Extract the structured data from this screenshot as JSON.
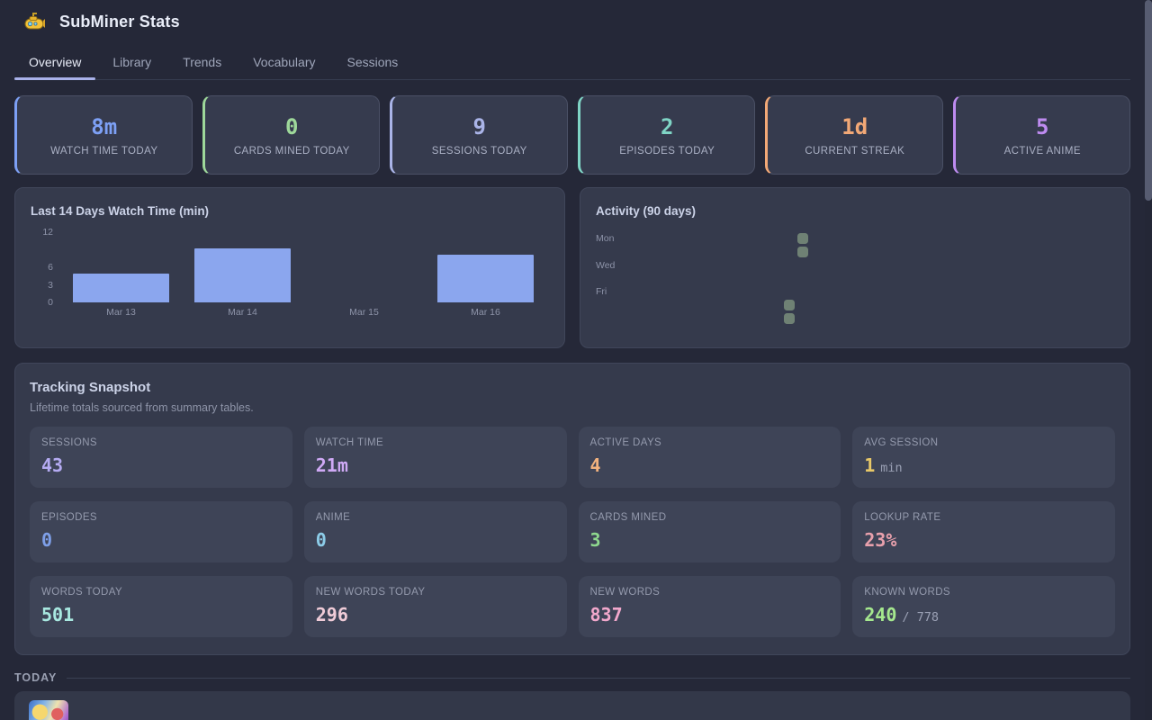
{
  "header": {
    "title": "SubMiner Stats",
    "icon": "yellow-submarine"
  },
  "tabs": [
    {
      "label": "Overview",
      "active": true
    },
    {
      "label": "Library",
      "active": false
    },
    {
      "label": "Trends",
      "active": false
    },
    {
      "label": "Vocabulary",
      "active": false
    },
    {
      "label": "Sessions",
      "active": false
    }
  ],
  "stat_cards": [
    {
      "value": "8m",
      "label": "WATCH TIME TODAY",
      "color": "#7da0f5"
    },
    {
      "value": "0",
      "label": "CARDS MINED TODAY",
      "color": "#9ed89a"
    },
    {
      "value": "9",
      "label": "SESSIONS TODAY",
      "color": "#aab4e8"
    },
    {
      "value": "2",
      "label": "EPISODES TODAY",
      "color": "#7fd4c5"
    },
    {
      "value": "1d",
      "label": "CURRENT STREAK",
      "color": "#f2a876"
    },
    {
      "value": "5",
      "label": "ACTIVE ANIME",
      "color": "#be8bf0"
    }
  ],
  "chart_data": [
    {
      "type": "bar",
      "title": "Last 14 Days Watch Time (min)",
      "categories": [
        "Mar 13",
        "Mar 14",
        "Mar 15",
        "Mar 16"
      ],
      "values": [
        5,
        9.3,
        0,
        8.2
      ],
      "yticks": [
        0,
        3,
        6,
        12
      ],
      "ylim": [
        0,
        12
      ],
      "xlabel": "",
      "ylabel": "minutes",
      "grid": false,
      "bar_color": "#8ba6ee"
    },
    {
      "type": "heatmap",
      "title": "Activity (90 days)",
      "days": [
        "Mon",
        "Tue",
        "Wed",
        "Thu",
        "Fri",
        "Sat",
        "Sun"
      ],
      "row_labels": [
        "Mon",
        "Wed",
        "Fri"
      ],
      "weeks": 13,
      "filled_cells": [
        {
          "day": "Mon",
          "week": 12
        },
        {
          "day": "Tue",
          "week": 12
        },
        {
          "day": "Sat",
          "week": 11
        },
        {
          "day": "Sun",
          "week": 11
        }
      ],
      "cell_color": "#6f8174"
    }
  ],
  "snapshot": {
    "title": "Tracking Snapshot",
    "subtitle": "Lifetime totals sourced from summary tables.",
    "cells": [
      {
        "label": "SESSIONS",
        "value": "43",
        "color": "#b5abf2"
      },
      {
        "label": "WATCH TIME",
        "value": "21m",
        "color": "#cfa9f5"
      },
      {
        "label": "ACTIVE DAYS",
        "value": "4",
        "color": "#f2b27e"
      },
      {
        "label": "AVG SESSION",
        "value": "1",
        "suffix": "min",
        "color": "#e8c868"
      },
      {
        "label": "EPISODES",
        "value": "0",
        "color": "#7e9fe8"
      },
      {
        "label": "ANIME",
        "value": "0",
        "color": "#8ccce8"
      },
      {
        "label": "CARDS MINED",
        "value": "3",
        "color": "#8ed88e"
      },
      {
        "label": "LOOKUP RATE",
        "value": "23%",
        "color": "#e8a0ac"
      },
      {
        "label": "WORDS TODAY",
        "value": "501",
        "color": "#a8e8e0"
      },
      {
        "label": "NEW WORDS TODAY",
        "value": "296",
        "color": "#f0ccd8"
      },
      {
        "label": "NEW WORDS",
        "value": "837",
        "color": "#f2a8cc"
      },
      {
        "label": "KNOWN WORDS",
        "value": "240",
        "suffix": "/ 778",
        "color": "#a5e88e"
      }
    ]
  },
  "today_section": {
    "label": "TODAY"
  }
}
